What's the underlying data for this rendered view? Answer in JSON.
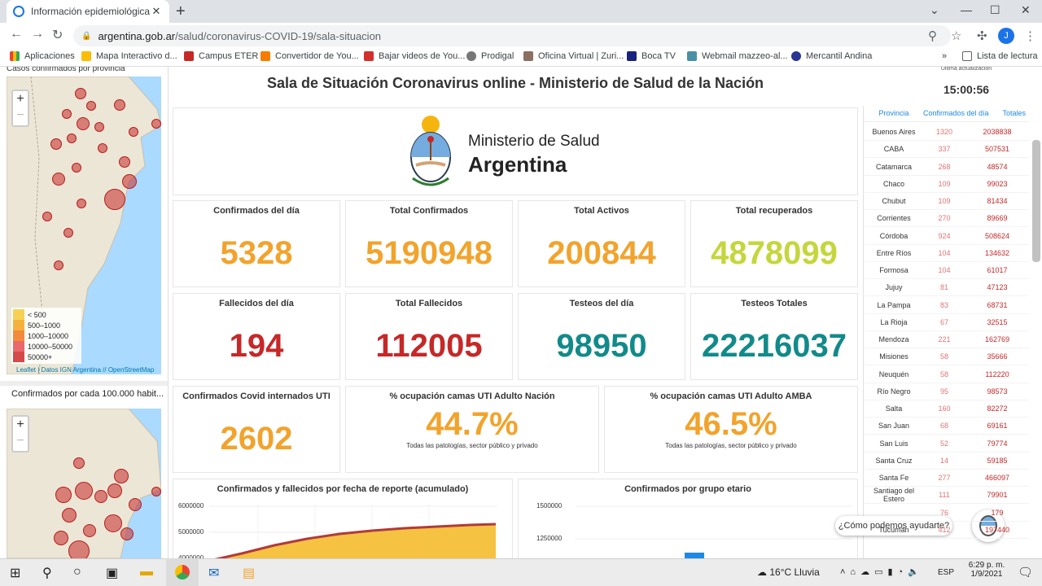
{
  "browser": {
    "tab_title": "Información epidemiológica | Ar",
    "new_tab": "+",
    "url_host": "argentina.gob.ar",
    "url_path": "/salud/coronavirus-COVID-19/sala-situacion",
    "profile_initial": "J"
  },
  "bookmarks": [
    "Aplicaciones",
    "Mapa Interactivo d...",
    "Campus ETER",
    "Convertidor de You...",
    "Bajar videos de You...",
    "Prodigal",
    "Oficina Virtual | Zuri...",
    "Boca TV",
    "Webmail mazzeo-al...",
    "Mercantil Andina"
  ],
  "reading_list": "Lista de lectura",
  "page": {
    "header_title": "Sala de Situación Coronavirus online - Ministerio de Salud de la Nación",
    "last_update_label": "Última actualización",
    "last_update_time": "15:00:56",
    "map1_title": "Casos confirmados por provincia",
    "map2_title": "Confirmados por cada 100.000 habit...",
    "zoom_in": "+",
    "zoom_out": "−",
    "map_attribution_leaflet": "Leaflet",
    "map_attribution_rest": " | Datos IGN Argentina // OpenStreetMap",
    "legend": [
      "< 500",
      "500–1000",
      "1000–10000",
      "10000–50000",
      "50000+"
    ],
    "logo_line1": "Ministerio de Salud",
    "logo_line2": "Argentina",
    "cards": [
      {
        "label": "Confirmados del día",
        "value": "5328",
        "color": "#f2a32c"
      },
      {
        "label": "Total Confirmados",
        "value": "5190948",
        "color": "#f2a32c"
      },
      {
        "label": "Total Activos",
        "value": "200844",
        "color": "#f2a32c"
      },
      {
        "label": "Total recuperados",
        "value": "4878099",
        "color": "#c5d63d"
      },
      {
        "label": "Fallecidos del día",
        "value": "194",
        "color": "#c62828"
      },
      {
        "label": "Total Fallecidos",
        "value": "112005",
        "color": "#c62828"
      },
      {
        "label": "Testeos del día",
        "value": "98950",
        "color": "#128a8a"
      },
      {
        "label": "Testeos Totales",
        "value": "22216037",
        "color": "#128a8a"
      }
    ],
    "uti": {
      "label": "Confirmados Covid internados UTI",
      "value": "2602"
    },
    "occ_nacion": {
      "label": "% ocupación camas UTI Adulto Nación",
      "value": "44.7%",
      "sub": "Todas las patologías, sector público y privado"
    },
    "occ_amba": {
      "label": "% ocupación camas UTI Adulto AMBA",
      "value": "46.5%",
      "sub": "Todas las patologías, sector público y privado"
    },
    "chart1_title": "Confirmados y fallecidos por fecha de reporte (acumulado)",
    "chart1_ticks": [
      "6000000",
      "5000000",
      "4000000"
    ],
    "chart2_title": "Confirmados por grupo etario",
    "chart2_ticks": [
      "1500000",
      "1250000"
    ],
    "table_headers": [
      "Provincia",
      "Confirmados del día",
      "Totales"
    ],
    "table": [
      {
        "p": "Buenos Aires",
        "d": "1320",
        "t": "2038838"
      },
      {
        "p": "CABA",
        "d": "337",
        "t": "507531"
      },
      {
        "p": "Catamarca",
        "d": "268",
        "t": "48574"
      },
      {
        "p": "Chaco",
        "d": "109",
        "t": "99023"
      },
      {
        "p": "Chubut",
        "d": "109",
        "t": "81434"
      },
      {
        "p": "Corrientes",
        "d": "270",
        "t": "89669"
      },
      {
        "p": "Córdoba",
        "d": "924",
        "t": "508624"
      },
      {
        "p": "Entre Ríos",
        "d": "104",
        "t": "134632"
      },
      {
        "p": "Formosa",
        "d": "104",
        "t": "61017"
      },
      {
        "p": "Jujuy",
        "d": "81",
        "t": "47123"
      },
      {
        "p": "La Pampa",
        "d": "83",
        "t": "68731"
      },
      {
        "p": "La Rioja",
        "d": "67",
        "t": "32515"
      },
      {
        "p": "Mendoza",
        "d": "221",
        "t": "162769"
      },
      {
        "p": "Misiones",
        "d": "58",
        "t": "35666"
      },
      {
        "p": "Neuquén",
        "d": "58",
        "t": "112220"
      },
      {
        "p": "Río Negro",
        "d": "95",
        "t": "98573"
      },
      {
        "p": "Salta",
        "d": "160",
        "t": "82272"
      },
      {
        "p": "San Juan",
        "d": "68",
        "t": "69161"
      },
      {
        "p": "San Luis",
        "d": "52",
        "t": "79774"
      },
      {
        "p": "Santa Cruz",
        "d": "14",
        "t": "59185"
      },
      {
        "p": "Santa Fe",
        "d": "277",
        "t": "466097"
      },
      {
        "p": "Santiago del Estero",
        "d": "111",
        "t": "79901"
      },
      {
        "p": "",
        "d": "76",
        "t": "179"
      },
      {
        "p": "Tucumán",
        "d": "412",
        "t": "197440"
      }
    ],
    "chat_bubble": "¿Cómo podemos ayudarte?"
  },
  "taskbar": {
    "weather": "16°C Lluvia",
    "lang": "ESP",
    "time": "6:29 p. m.",
    "date": "1/9/2021"
  }
}
